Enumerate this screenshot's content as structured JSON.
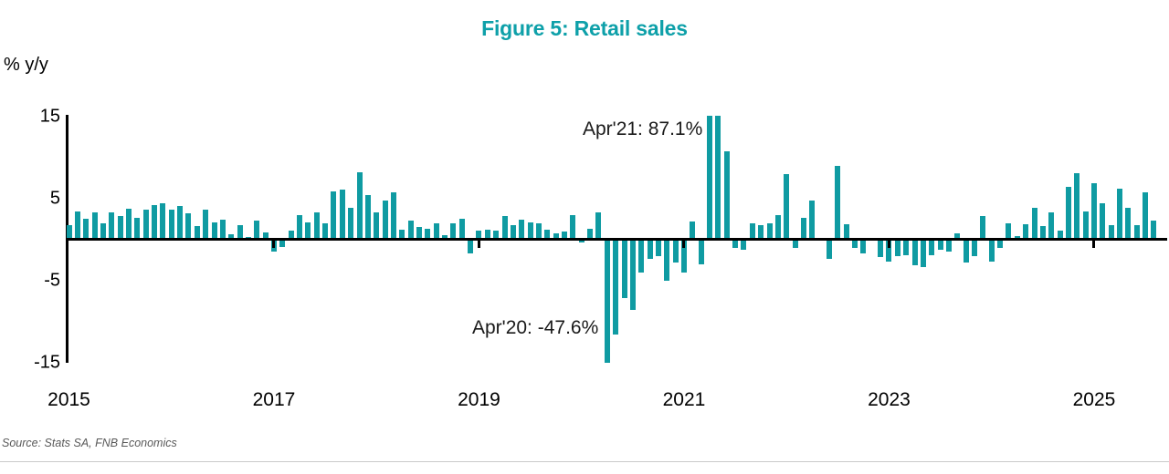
{
  "title": "Figure 5: Retail sales",
  "unit_label": "% y/y",
  "source": "Source: Stats SA, FNB Economics",
  "colors": {
    "accent_teal": "#0F9BA2",
    "title_teal": "#0EA0A9",
    "axis_black": "#000000",
    "annotation_text": "#1a1a1a",
    "source_gray": "#595959"
  },
  "annotations": {
    "apr21_label": "Apr'21: 87.1%",
    "apr20_label": "Apr'20: -47.6%"
  },
  "chart_data": {
    "type": "bar",
    "title": "Figure 5: Retail sales",
    "ylabel": "% y/y",
    "xlabel": "",
    "ylim": [
      -15,
      15
    ],
    "yticks": [
      15,
      5,
      -5,
      -15
    ],
    "xticks": [
      "2015",
      "2017",
      "2019",
      "2021",
      "2023",
      "2025"
    ],
    "grid": false,
    "legend": false,
    "start_month": "2015-01",
    "end_month": "2025-08",
    "frequency": "monthly",
    "clipped_to_ylim": true,
    "annotations": [
      {
        "month": "2021-04",
        "value": 87.1,
        "label": "Apr'21: 87.1%"
      },
      {
        "month": "2020-04",
        "value": -47.6,
        "label": "Apr'20: -47.6%"
      }
    ],
    "series": [
      {
        "name": "Retail sales, % y/y",
        "values": [
          1.7,
          3.4,
          2.5,
          3.3,
          2.0,
          3.3,
          2.8,
          3.7,
          2.6,
          3.6,
          4.2,
          4.4,
          3.6,
          4.1,
          3.2,
          1.6,
          3.6,
          2.1,
          2.4,
          0.6,
          1.7,
          0.3,
          2.3,
          0.8,
          -1.5,
          -0.9,
          1.1,
          3.0,
          2.1,
          3.3,
          2.0,
          5.8,
          6.1,
          3.8,
          8.2,
          5.4,
          3.3,
          4.7,
          5.7,
          1.2,
          2.3,
          1.5,
          1.3,
          2.0,
          0.5,
          1.9,
          2.5,
          -1.7,
          1.1,
          1.2,
          1.1,
          2.8,
          1.7,
          2.4,
          2.1,
          1.9,
          1.2,
          0.7,
          1.0,
          2.9,
          -0.4,
          1.3,
          3.3,
          -47.6,
          -11.6,
          -7.2,
          -8.6,
          -4.0,
          -2.4,
          -2.1,
          -5.0,
          -2.8,
          -4.1,
          2.2,
          -3.0,
          87.1,
          15.8,
          10.7,
          -1.1,
          -1.3,
          2.0,
          1.7,
          1.9,
          3.0,
          8.0,
          -1.1,
          2.6,
          4.7,
          0.1,
          -2.4,
          8.9,
          1.8,
          -1.0,
          -1.7,
          0.2,
          -2.2,
          -2.7,
          -2.1,
          -1.9,
          -3.2,
          -3.4,
          -1.9,
          -1.3,
          -1.5,
          0.7,
          -2.8,
          -2.1,
          2.8,
          -2.7,
          -1.0,
          1.9,
          0.4,
          1.8,
          3.8,
          1.6,
          3.3,
          1.1,
          6.4,
          8.1,
          3.4,
          6.8,
          4.4,
          1.7,
          6.2,
          3.8,
          1.7,
          5.7,
          2.3
        ]
      }
    ]
  }
}
